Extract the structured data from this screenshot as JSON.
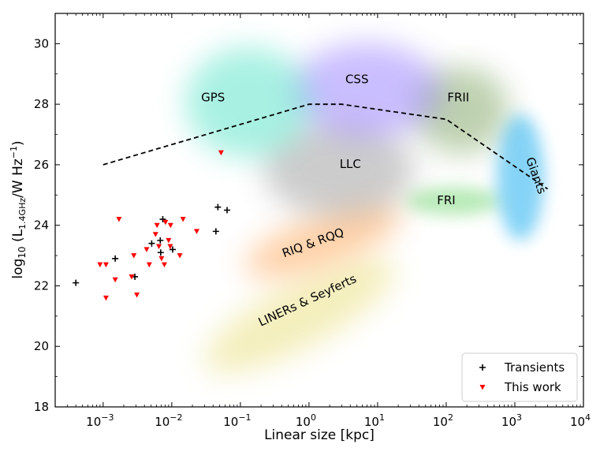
{
  "chart_data": {
    "type": "scatter",
    "xlabel": "Linear size [kpc]",
    "ylabel": "log10 (L1.4GHz/W Hz−1)",
    "ylabel_parts": {
      "main": "log",
      "sub10": "10",
      "open": " (L",
      "sub_band": "1.4GHz",
      "unit": "/W Hz",
      "sup": "−1",
      "close": ")"
    },
    "xscale": "log",
    "xlim": [
      0.0002,
      10000
    ],
    "ylim": [
      18,
      31
    ],
    "x_ticks": [
      {
        "value": 0.001,
        "base": "10",
        "exp": "−3"
      },
      {
        "value": 0.01,
        "base": "10",
        "exp": "−2"
      },
      {
        "value": 0.1,
        "base": "10",
        "exp": "−1"
      },
      {
        "value": 1,
        "base": "10",
        "exp": "0"
      },
      {
        "value": 10,
        "base": "10",
        "exp": "1"
      },
      {
        "value": 100,
        "base": "10",
        "exp": "2"
      },
      {
        "value": 1000,
        "base": "10",
        "exp": "3"
      },
      {
        "value": 10000,
        "base": "10",
        "exp": "4"
      }
    ],
    "y_ticks": [
      18,
      20,
      22,
      24,
      26,
      28,
      30
    ],
    "grid": false,
    "legend_position": "bottom-right",
    "legend": [
      {
        "label": "Transients",
        "marker": "plus",
        "color": "#000000"
      },
      {
        "label": "This work",
        "marker": "triangle-down",
        "color": "#ff0000"
      }
    ],
    "regions": [
      {
        "label": "GPS",
        "color": "#40e0c0",
        "center": [
          0.04,
          28.3
        ],
        "label_pos": [
          0.04,
          28.1
        ],
        "rotation": 0
      },
      {
        "label": "CSS",
        "color": "#8a70ff",
        "center": [
          5,
          28.2
        ],
        "label_pos": [
          5,
          28.7
        ],
        "rotation": 0
      },
      {
        "label": "FRII",
        "color": "#6e9a50",
        "center": [
          150,
          28.1
        ],
        "label_pos": [
          150,
          28.1
        ],
        "rotation": 0
      },
      {
        "label": "LLC",
        "color": "#909090",
        "center": [
          4,
          25.8
        ],
        "label_pos": [
          4,
          25.9
        ],
        "rotation": 0
      },
      {
        "label": "Giants",
        "color": "#20b0f0",
        "center": [
          1500,
          25.6
        ],
        "label_pos": [
          1800,
          25.6
        ],
        "rotation": 70
      },
      {
        "label": "FRI",
        "color": "#60d060",
        "center": [
          150,
          24.8
        ],
        "label_pos": [
          100,
          24.7
        ],
        "rotation": 0
      },
      {
        "label": "RIQ & RQQ",
        "color": "#ff9a40",
        "center": [
          3,
          23.3
        ],
        "label_pos": [
          1.2,
          23.3
        ],
        "rotation": -20
      },
      {
        "label": "LINERs & Seyferts",
        "color": "#e0d040",
        "center": [
          1,
          21.5
        ],
        "label_pos": [
          1,
          21.4
        ],
        "rotation": -25
      }
    ],
    "dashed_line": {
      "x": [
        0.001,
        1,
        3,
        100,
        3000
      ],
      "y": [
        26.0,
        28.0,
        28.0,
        27.5,
        25.2
      ]
    },
    "series": [
      {
        "name": "Transients",
        "marker": "plus",
        "color": "#000000",
        "x": [
          0.0004,
          0.0015,
          0.0029,
          0.0051,
          0.0068,
          0.0074,
          0.0069,
          0.0103,
          0.044,
          0.047,
          0.064
        ],
        "y": [
          22.1,
          22.9,
          22.3,
          23.4,
          23.5,
          24.2,
          23.1,
          23.2,
          23.8,
          24.6,
          24.5
        ]
      },
      {
        "name": "This work",
        "marker": "triangle-down",
        "color": "#ff0000",
        "x": [
          0.0009,
          0.0011,
          0.0011,
          0.0015,
          0.0017,
          0.0026,
          0.0028,
          0.0031,
          0.0043,
          0.0047,
          0.0058,
          0.0061,
          0.0065,
          0.0071,
          0.0078,
          0.0081,
          0.009,
          0.0095,
          0.0096,
          0.0131,
          0.0146,
          0.0231,
          0.0523
        ],
        "y": [
          22.7,
          22.7,
          21.6,
          22.2,
          24.2,
          22.3,
          23.0,
          21.7,
          23.2,
          22.7,
          23.7,
          24.0,
          23.3,
          22.9,
          22.7,
          24.1,
          23.5,
          23.3,
          24.0,
          23.0,
          24.2,
          23.8,
          26.4
        ]
      }
    ]
  }
}
